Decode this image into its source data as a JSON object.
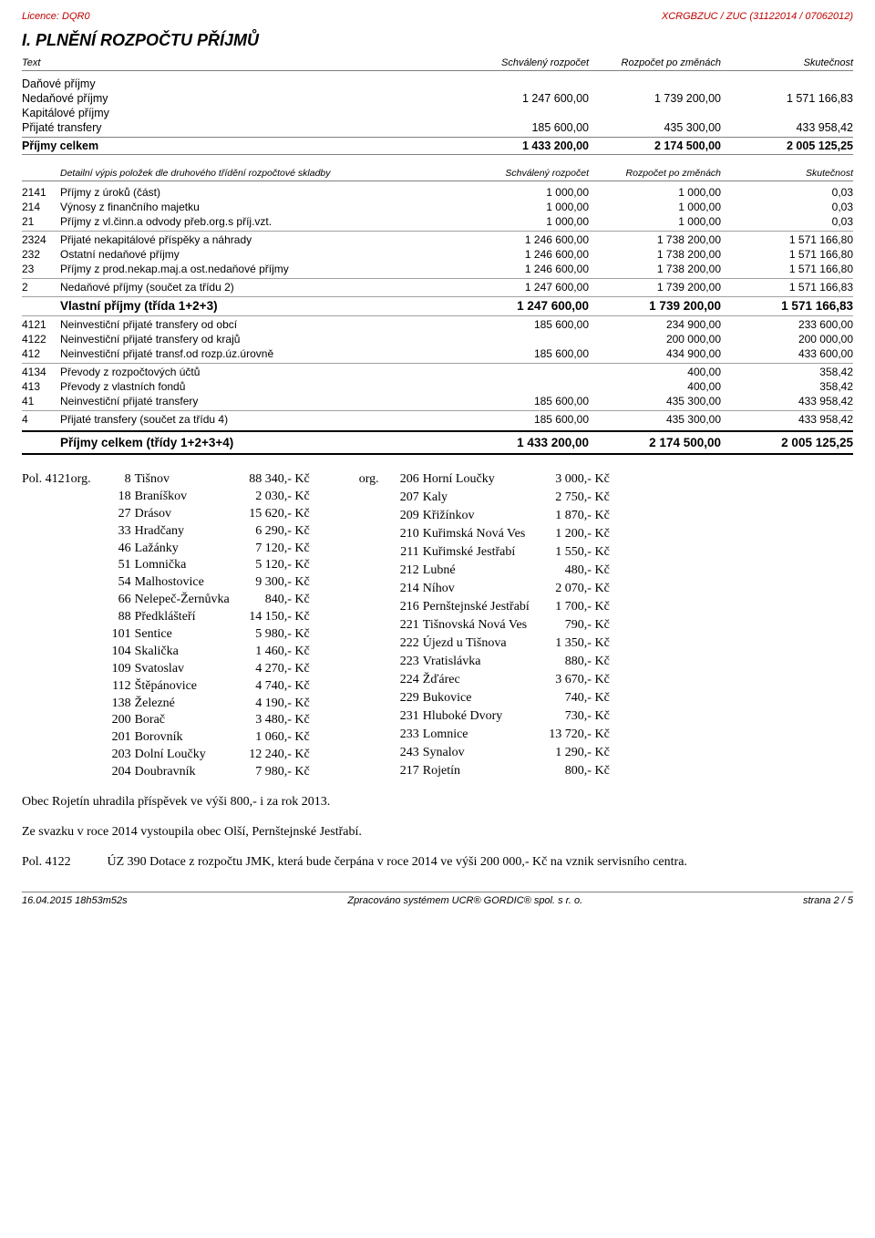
{
  "header": {
    "left": "Licence: DQR0",
    "right": "XCRGBZUC / ZUC (31122014 / 07062012)"
  },
  "title": "I. PLNĚNÍ ROZPOČTU PŘÍJMŮ",
  "cols": {
    "c0": "Text",
    "c1": "Schválený rozpočet",
    "c2": "Rozpočet po změnách",
    "c3": "Skutečnost"
  },
  "summary": [
    {
      "label": "Daňové příjmy",
      "v1": "",
      "v2": "",
      "v3": ""
    },
    {
      "label": "Nedaňové příjmy",
      "v1": "1 247 600,00",
      "v2": "1 739 200,00",
      "v3": "1 571 166,83"
    },
    {
      "label": "Kapitálové příjmy",
      "v1": "",
      "v2": "",
      "v3": ""
    },
    {
      "label": "Přijaté transfery",
      "v1": "185 600,00",
      "v2": "435 300,00",
      "v3": "433 958,42"
    }
  ],
  "summary_total": {
    "label": "Příjmy celkem",
    "v1": "1 433 200,00",
    "v2": "2 174 500,00",
    "v3": "2 005 125,25"
  },
  "detail_header": "Detailní výpis položek dle druhového třídění rozpočtové skladby",
  "rows": [
    {
      "id": "2141",
      "txt": "Příjmy z úroků (část)",
      "v1": "1 000,00",
      "v2": "1 000,00",
      "v3": "0,03",
      "sep": false,
      "bold": false
    },
    {
      "id": "214",
      "txt": "Výnosy z finančního majetku",
      "v1": "1 000,00",
      "v2": "1 000,00",
      "v3": "0,03",
      "sep": false,
      "bold": false
    },
    {
      "id": "21",
      "txt": "Příjmy z vl.činn.a odvody přeb.org.s příj.vzt.",
      "v1": "1 000,00",
      "v2": "1 000,00",
      "v3": "0,03",
      "sep": false,
      "bold": false
    },
    {
      "id": "2324",
      "txt": "Přijaté nekapitálové příspěky a náhrady",
      "v1": "1 246 600,00",
      "v2": "1 738 200,00",
      "v3": "1 571 166,80",
      "sep": true,
      "bold": false
    },
    {
      "id": "232",
      "txt": "Ostatní nedaňové příjmy",
      "v1": "1 246 600,00",
      "v2": "1 738 200,00",
      "v3": "1 571 166,80",
      "sep": false,
      "bold": false
    },
    {
      "id": "23",
      "txt": "Příjmy z prod.nekap.maj.a ost.nedaňové příjmy",
      "v1": "1 246 600,00",
      "v2": "1 738 200,00",
      "v3": "1 571 166,80",
      "sep": false,
      "bold": false
    },
    {
      "id": "2",
      "txt": "Nedaňové příjmy (součet za třídu 2)",
      "v1": "1 247 600,00",
      "v2": "1 739 200,00",
      "v3": "1 571 166,83",
      "sep": true,
      "bold": false
    },
    {
      "id": "",
      "txt": "Vlastní příjmy (třída 1+2+3)",
      "v1": "1 247 600,00",
      "v2": "1 739 200,00",
      "v3": "1 571 166,83",
      "sep": true,
      "bold": true
    },
    {
      "id": "4121",
      "txt": "Neinvestiční přijaté transfery od obcí",
      "v1": "185 600,00",
      "v2": "234 900,00",
      "v3": "233 600,00",
      "sep": true,
      "bold": false
    },
    {
      "id": "4122",
      "txt": "Neinvestiční přijaté transfery od krajů",
      "v1": "",
      "v2": "200 000,00",
      "v3": "200 000,00",
      "sep": false,
      "bold": false
    },
    {
      "id": "412",
      "txt": "Neinvestiční přijaté transf.od rozp.úz.úrovně",
      "v1": "185 600,00",
      "v2": "434 900,00",
      "v3": "433 600,00",
      "sep": false,
      "bold": false
    },
    {
      "id": "4134",
      "txt": "Převody z rozpočtových účtů",
      "v1": "",
      "v2": "400,00",
      "v3": "358,42",
      "sep": true,
      "bold": false
    },
    {
      "id": "413",
      "txt": "Převody z vlastních fondů",
      "v1": "",
      "v2": "400,00",
      "v3": "358,42",
      "sep": false,
      "bold": false
    },
    {
      "id": "41",
      "txt": "Neinvestiční přijaté transfery",
      "v1": "185 600,00",
      "v2": "435 300,00",
      "v3": "433 958,42",
      "sep": false,
      "bold": false
    },
    {
      "id": "4",
      "txt": "Přijaté transfery (součet za třídu 4)",
      "v1": "185 600,00",
      "v2": "435 300,00",
      "v3": "433 958,42",
      "sep": true,
      "bold": false
    }
  ],
  "final": {
    "label": "Příjmy celkem (třídy 1+2+3+4)",
    "v1": "1 433 200,00",
    "v2": "2 174 500,00",
    "v3": "2 005 125,25"
  },
  "pol_lead": "Pol. 4121org.",
  "left_list": [
    {
      "c": "8",
      "n": "Tišnov",
      "a": "88 340,- Kč"
    },
    {
      "c": "18",
      "n": "Braníškov",
      "a": "2 030,- Kč"
    },
    {
      "c": "27",
      "n": "Drásov",
      "a": "15 620,- Kč"
    },
    {
      "c": "33",
      "n": "Hradčany",
      "a": "6 290,- Kč"
    },
    {
      "c": "46",
      "n": "Lažánky",
      "a": "7 120,- Kč"
    },
    {
      "c": "51",
      "n": "Lomnička",
      "a": "5 120,- Kč"
    },
    {
      "c": "54",
      "n": "Malhostovice",
      "a": "9 300,- Kč"
    },
    {
      "c": "66",
      "n": "Nelepeč-Žernůvka",
      "a": "840,- Kč"
    },
    {
      "c": "88",
      "n": "Předklášteří",
      "a": "14 150,- Kč"
    },
    {
      "c": "101",
      "n": "Sentice",
      "a": "5 980,- Kč"
    },
    {
      "c": "104",
      "n": "Skalička",
      "a": "1 460,- Kč"
    },
    {
      "c": "109",
      "n": "Svatoslav",
      "a": "4 270,- Kč"
    },
    {
      "c": "112",
      "n": "Štěpánovice",
      "a": "4 740,- Kč"
    },
    {
      "c": "138",
      "n": "Železné",
      "a": "4 190,- Kč"
    },
    {
      "c": "200",
      "n": "Borač",
      "a": "3 480,- Kč"
    },
    {
      "c": "201",
      "n": "Borovník",
      "a": "1 060,- Kč"
    },
    {
      "c": "203",
      "n": "Dolní Loučky",
      "a": "12 240,- Kč"
    },
    {
      "c": "204",
      "n": "Doubravník",
      "a": "7 980,- Kč"
    }
  ],
  "right_lead": "org.",
  "right_list": [
    {
      "c": "206",
      "n": "Horní Loučky",
      "a": "3 000,- Kč"
    },
    {
      "c": "207",
      "n": "Kaly",
      "a": "2 750,- Kč"
    },
    {
      "c": "209",
      "n": "Křižínkov",
      "a": "1 870,- Kč"
    },
    {
      "c": "210",
      "n": "Kuřimská Nová Ves",
      "a": "1 200,- Kč"
    },
    {
      "c": "211",
      "n": "Kuřimské Jestřabí",
      "a": "1 550,- Kč"
    },
    {
      "c": "212",
      "n": "Lubné",
      "a": "480,- Kč"
    },
    {
      "c": "214",
      "n": "Níhov",
      "a": "2 070,- Kč"
    },
    {
      "c": "216",
      "n": "Pernštejnské Jestřabí",
      "a": "1 700,- Kč"
    },
    {
      "c": "221",
      "n": "Tišnovská Nová Ves",
      "a": "790,- Kč"
    },
    {
      "c": "222",
      "n": "Újezd u Tišnova",
      "a": "1 350,- Kč"
    },
    {
      "c": "223",
      "n": "Vratislávka",
      "a": "880,- Kč"
    },
    {
      "c": "224",
      "n": "Žďárec",
      "a": "3 670,- Kč"
    },
    {
      "c": "229",
      "n": "Bukovice",
      "a": "740,- Kč"
    },
    {
      "c": "231",
      "n": "Hluboké Dvory",
      "a": "730,- Kč"
    },
    {
      "c": "233",
      "n": "Lomnice",
      "a": "13 720,- Kč"
    },
    {
      "c": "243",
      "n": "Synalov",
      "a": "1 290,- Kč"
    },
    {
      "c": "217",
      "n": "Rojetín",
      "a": "800,- Kč"
    }
  ],
  "para1": "Obec Rojetín uhradila příspěvek ve výši 800,- i za rok 2013.",
  "para2": "Ze svazku v roce 2014 vystoupila obec Olší, Pernštejnské Jestřabí.",
  "para3_lead": "Pol. 4122",
  "para3_body": "ÚZ 390   Dotace z rozpočtu JMK, která bude čerpána v roce 2014 ve výši 200 000,- Kč na vznik servisního centra.",
  "footer": {
    "left": "16.04.2015 18h53m52s",
    "mid": "Zpracováno systémem  UCR® GORDIC® spol. s  r. o.",
    "right": "strana  2 / 5"
  }
}
